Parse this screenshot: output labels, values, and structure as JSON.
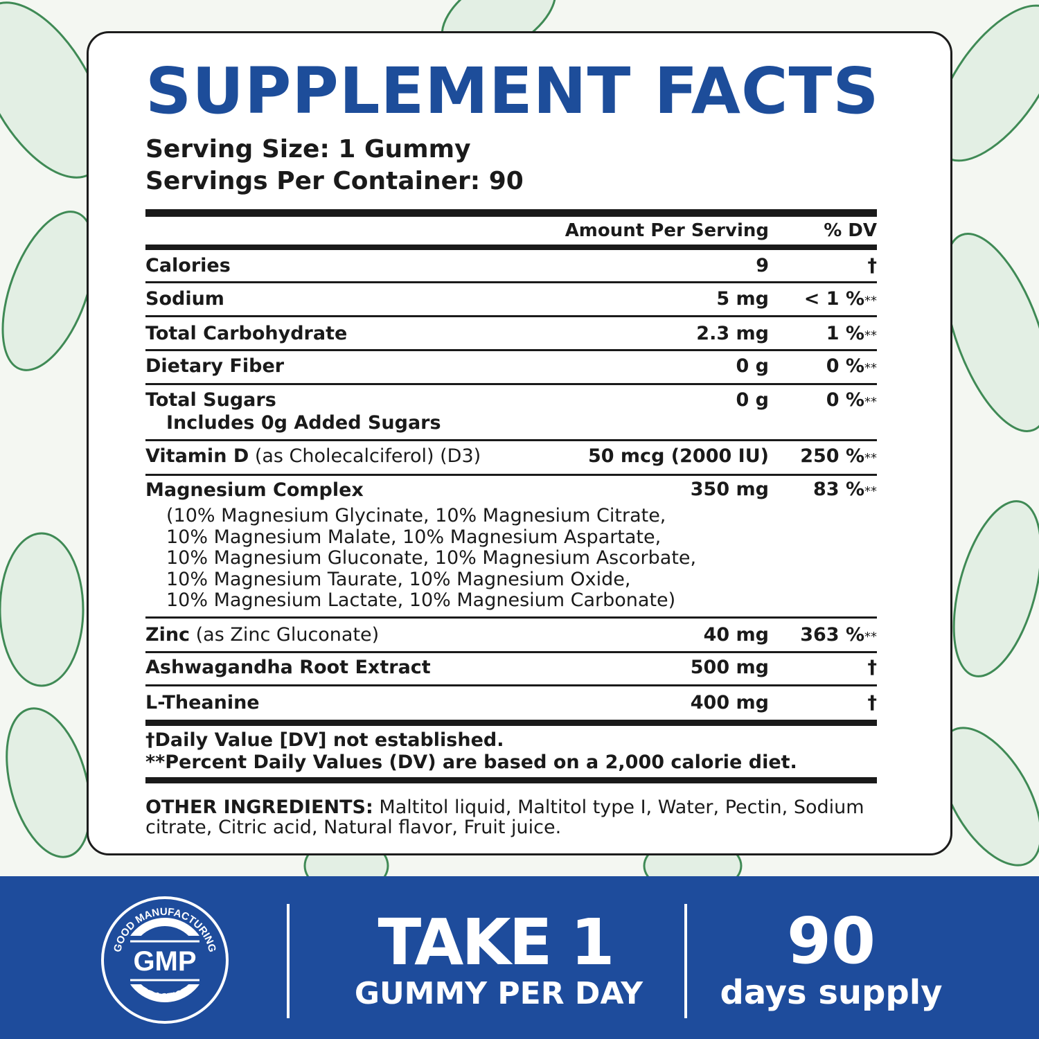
{
  "title": "SUPPLEMENT FACTS",
  "serving_size": "Serving Size: 1 Gummy",
  "servings_per_container": "Servings Per Container: 90",
  "header": {
    "amount": "Amount Per Serving",
    "dv": "% DV"
  },
  "rows": [
    {
      "name": "Calories",
      "amount": "9",
      "dv": "†",
      "dv_suffix": ""
    },
    {
      "name": "Sodium",
      "amount": "5 mg",
      "dv": "< 1 %",
      "dv_suffix": "**"
    },
    {
      "name": "Total Carbohydrate",
      "amount": "2.3 mg",
      "dv": "1 %",
      "dv_suffix": "**"
    },
    {
      "name": "Dietary Fiber",
      "amount": "0 g",
      "dv": "0 %",
      "dv_suffix": "**"
    },
    {
      "name": "Total Sugars",
      "sub": "Includes 0g Added Sugars",
      "amount": "0 g",
      "dv": "0 %",
      "dv_suffix": "**"
    },
    {
      "name": "Vitamin D",
      "note": " (as Cholecalciferol) (D3)",
      "amount": "50 mcg (2000 IU)",
      "dv": "250 %",
      "dv_suffix": "**"
    },
    {
      "name": "Magnesium Complex",
      "amount": "350 mg",
      "dv": "83 %",
      "dv_suffix": "**",
      "details": [
        "(10% Magnesium Glycinate, 10% Magnesium Citrate,",
        "10% Magnesium Malate, 10% Magnesium Aspartate,",
        "10% Magnesium Gluconate, 10% Magnesium Ascorbate,",
        "10% Magnesium Taurate, 10% Magnesium Oxide,",
        "10% Magnesium Lactate, 10% Magnesium Carbonate)"
      ]
    },
    {
      "name": "Zinc",
      "note": " (as Zinc Gluconate)",
      "amount": "40 mg",
      "dv": "363 %",
      "dv_suffix": "**"
    },
    {
      "name": "Ashwagandha Root Extract",
      "amount": "500 mg",
      "dv": "†",
      "dv_suffix": ""
    },
    {
      "name": "L-Theanine",
      "amount": "400 mg",
      "dv": "†",
      "dv_suffix": ""
    }
  ],
  "footnotes": [
    "†Daily Value [DV] not established.",
    "**Percent Daily Values (DV) are based on a 2,000 calorie diet."
  ],
  "other_ingredients": {
    "label": "OTHER INGREDIENTS:",
    "text": " Maltitol liquid, Maltitol type I, Water, Pectin, Sodium citrate, Citric acid, Natural flavor, Fruit juice."
  },
  "banner": {
    "badge": {
      "top": "GOOD MANUFACTURING",
      "center": "GMP",
      "bottom": "PRACTICE"
    },
    "take": "TAKE 1",
    "take_sub": "GUMMY PER DAY",
    "days": "90",
    "days_sub": "days supply"
  },
  "colors": {
    "brand_blue": "#1e4c9c",
    "title_blue": "#1d4d9a",
    "leaf_green": "#4f9a63"
  }
}
